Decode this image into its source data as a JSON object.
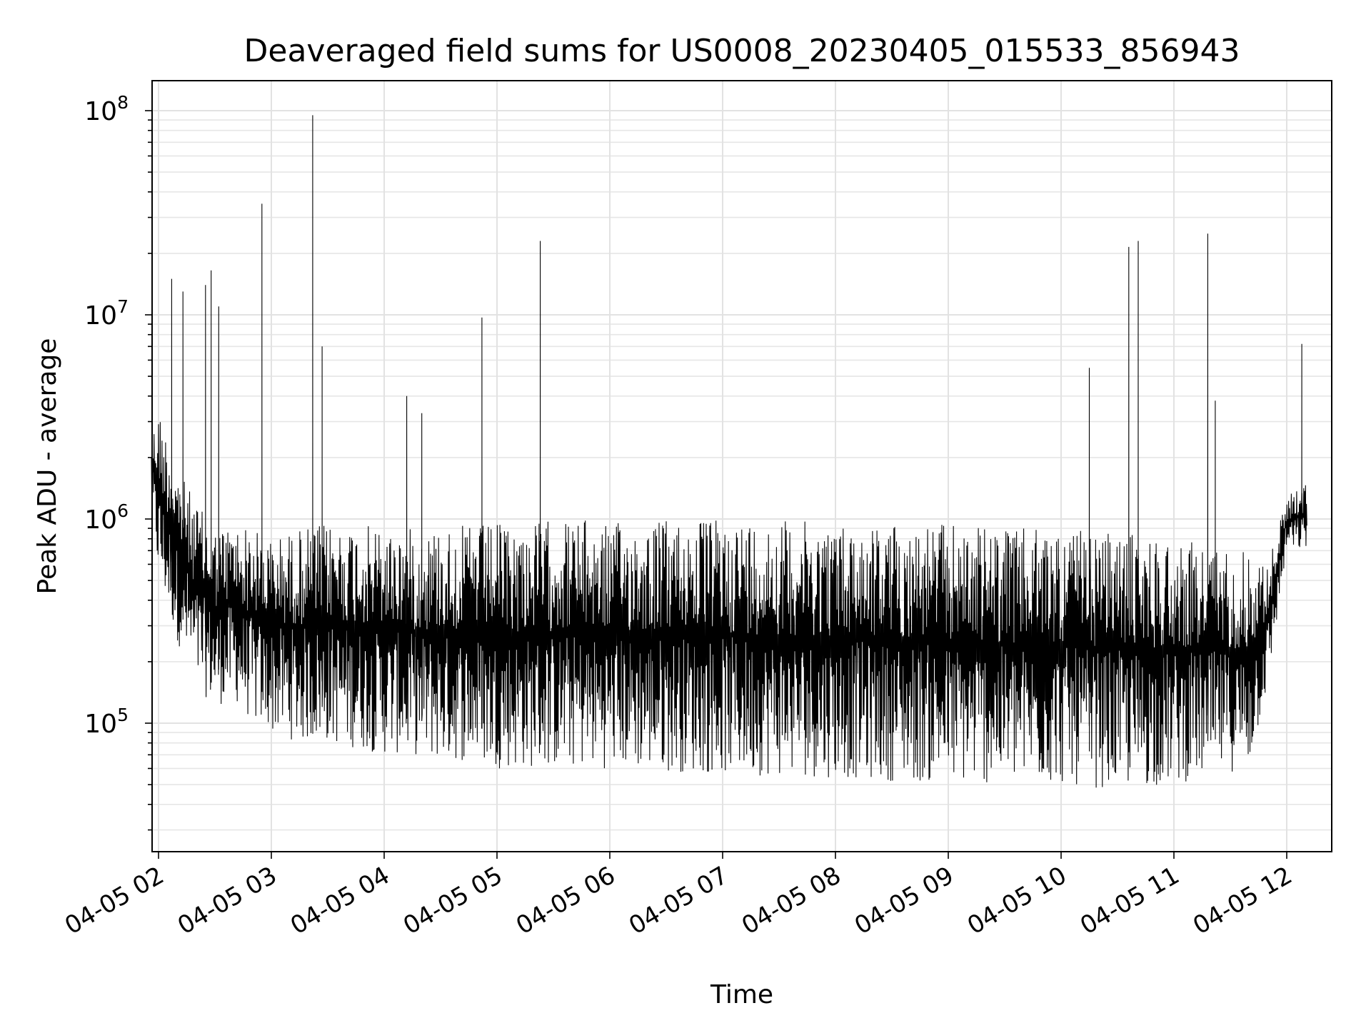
{
  "chart_data": {
    "type": "line",
    "title": "Deaveraged field sums for US0008_20230405_015533_856943",
    "xlabel": "Time",
    "ylabel": "Peak ADU - average",
    "y_scale": "log",
    "grid": "on (major and minor)",
    "legend": "none",
    "line_color": "#000000",
    "xlim": [
      "04-05 01:55",
      "04-05 12:11"
    ],
    "ylim": [
      23000,
      140000000
    ],
    "x_ticks": [
      "04-05 02",
      "04-05 03",
      "04-05 04",
      "04-05 05",
      "04-05 06",
      "04-05 07",
      "04-05 08",
      "04-05 09",
      "04-05 10",
      "04-05 11",
      "04-05 12"
    ],
    "y_ticks": [
      {
        "value": 100000,
        "base": "10",
        "exp": "5"
      },
      {
        "value": 1000000,
        "base": "10",
        "exp": "6"
      },
      {
        "value": 10000000,
        "base": "10",
        "exp": "7"
      },
      {
        "value": 100000000,
        "base": "10",
        "exp": "8"
      }
    ],
    "series": [
      {
        "x": [
          "04-05 01:56",
          "04-05 02:00",
          "04-05 02:10",
          "04-05 02:20",
          "04-05 02:30",
          "04-05 02:40",
          "04-05 02:50",
          "04-05 03:00",
          "04-05 03:15",
          "04-05 03:30",
          "04-05 03:45",
          "04-05 04:00",
          "04-05 04:15",
          "04-05 04:30",
          "04-05 04:45",
          "04-05 05:00",
          "04-05 05:15",
          "04-05 05:30",
          "04-05 05:45",
          "04-05 06:00",
          "04-05 06:30",
          "04-05 07:00",
          "04-05 07:30",
          "04-05 08:00",
          "04-05 08:30",
          "04-05 09:00",
          "04-05 09:30",
          "04-05 10:00",
          "04-05 10:20",
          "04-05 10:40",
          "04-05 11:00",
          "04-05 11:20",
          "04-05 11:40",
          "04-05 11:50",
          "04-05 12:00",
          "04-05 12:10"
        ],
        "y_upper": [
          2500000,
          3500000,
          1800000,
          1200000,
          900000,
          950000,
          900000,
          800000,
          900000,
          950000,
          950000,
          900000,
          900000,
          920000,
          930000,
          950000,
          950000,
          1000000,
          1000000,
          950000,
          1000000,
          1000000,
          1000000,
          950000,
          950000,
          950000,
          900000,
          900000,
          850000,
          850000,
          800000,
          750000,
          700000,
          600000,
          1300000,
          1500000
        ],
        "y_lower": [
          1200000,
          500000,
          250000,
          150000,
          120000,
          130000,
          100000,
          90000,
          80000,
          80000,
          75000,
          70000,
          70000,
          65000,
          65000,
          60000,
          60000,
          60000,
          60000,
          60000,
          58000,
          56000,
          55000,
          54000,
          52000,
          50000,
          50000,
          50000,
          48000,
          48000,
          50000,
          55000,
          60000,
          150000,
          700000,
          700000
        ]
      }
    ],
    "spikes": [
      {
        "x": "04-05 02:07",
        "y": 15000000
      },
      {
        "x": "04-05 02:13",
        "y": 13000000
      },
      {
        "x": "04-05 02:25",
        "y": 14000000
      },
      {
        "x": "04-05 02:28",
        "y": 16500000
      },
      {
        "x": "04-05 02:32",
        "y": 11000000
      },
      {
        "x": "04-05 02:55",
        "y": 35000000
      },
      {
        "x": "04-05 03:22",
        "y": 95000000
      },
      {
        "x": "04-05 03:27",
        "y": 7000000
      },
      {
        "x": "04-05 04:12",
        "y": 4000000
      },
      {
        "x": "04-05 04:20",
        "y": 3300000
      },
      {
        "x": "04-05 04:52",
        "y": 9700000
      },
      {
        "x": "04-05 05:23",
        "y": 23000000
      },
      {
        "x": "04-05 10:15",
        "y": 5500000
      },
      {
        "x": "04-05 10:36",
        "y": 21500000
      },
      {
        "x": "04-05 10:41",
        "y": 23000000
      },
      {
        "x": "04-05 11:18",
        "y": 25000000
      },
      {
        "x": "04-05 11:22",
        "y": 3800000
      },
      {
        "x": "04-05 12:08",
        "y": 7200000
      }
    ]
  }
}
